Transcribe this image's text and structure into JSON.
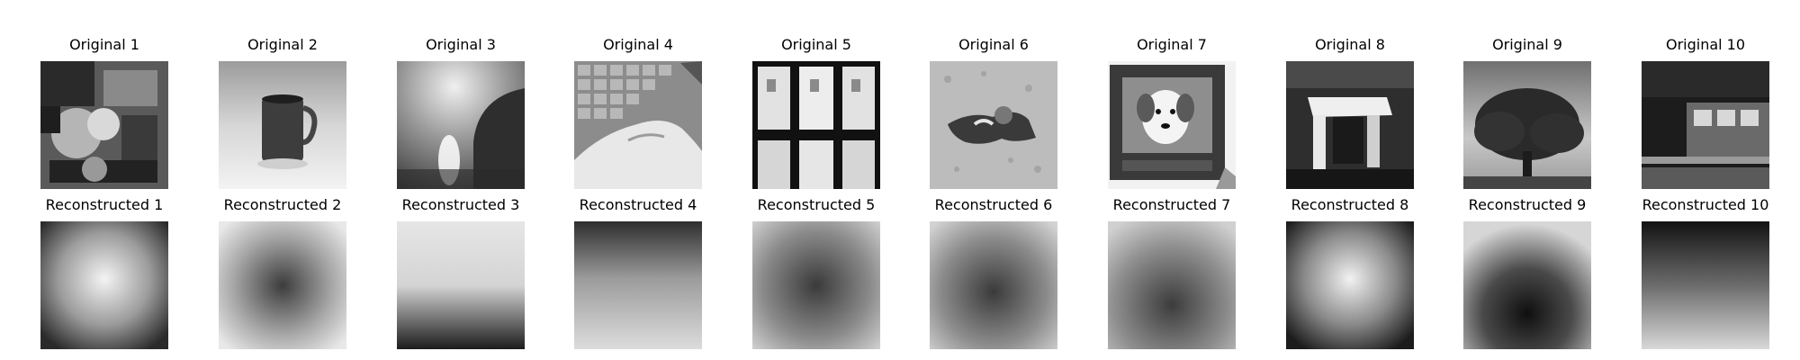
{
  "figure": {
    "rows": [
      {
        "row": "original",
        "items": [
          {
            "label": "Original 1",
            "content": "blurry grayscale photo, cluttered dark textures"
          },
          {
            "label": "Original 2",
            "content": "dark mug on light background"
          },
          {
            "label": "Original 3",
            "content": "bright glow with dark shape on right"
          },
          {
            "label": "Original 4",
            "content": "hand resting on keyboard"
          },
          {
            "label": "Original 5",
            "content": "row of playing cards"
          },
          {
            "label": "Original 6",
            "content": "small animal on light gravel"
          },
          {
            "label": "Original 7",
            "content": "dog on a TV screen"
          },
          {
            "label": "Original 8",
            "content": "white table/object in dark room"
          },
          {
            "label": "Original 9",
            "content": "tree against light sky"
          },
          {
            "label": "Original 10",
            "content": "dark street with bus"
          }
        ]
      },
      {
        "row": "reconstructed",
        "items": [
          {
            "label": "Reconstructed 1",
            "content": "bright noisy blob in center"
          },
          {
            "label": "Reconstructed 2",
            "content": "light noisy field with dark center"
          },
          {
            "label": "Reconstructed 3",
            "content": "light top fading to dark bottom"
          },
          {
            "label": "Reconstructed 4",
            "content": "dark top, lighter center"
          },
          {
            "label": "Reconstructed 5",
            "content": "gray noisy, darker center"
          },
          {
            "label": "Reconstructed 6",
            "content": "gray noisy, darker center"
          },
          {
            "label": "Reconstructed 7",
            "content": "gray noisy, darker lower area"
          },
          {
            "label": "Reconstructed 8",
            "content": "bright center, dark edges"
          },
          {
            "label": "Reconstructed 9",
            "content": "light top, dark bottom blob"
          },
          {
            "label": "Reconstructed 10",
            "content": "dark top, lighter bottom"
          }
        ]
      }
    ]
  }
}
